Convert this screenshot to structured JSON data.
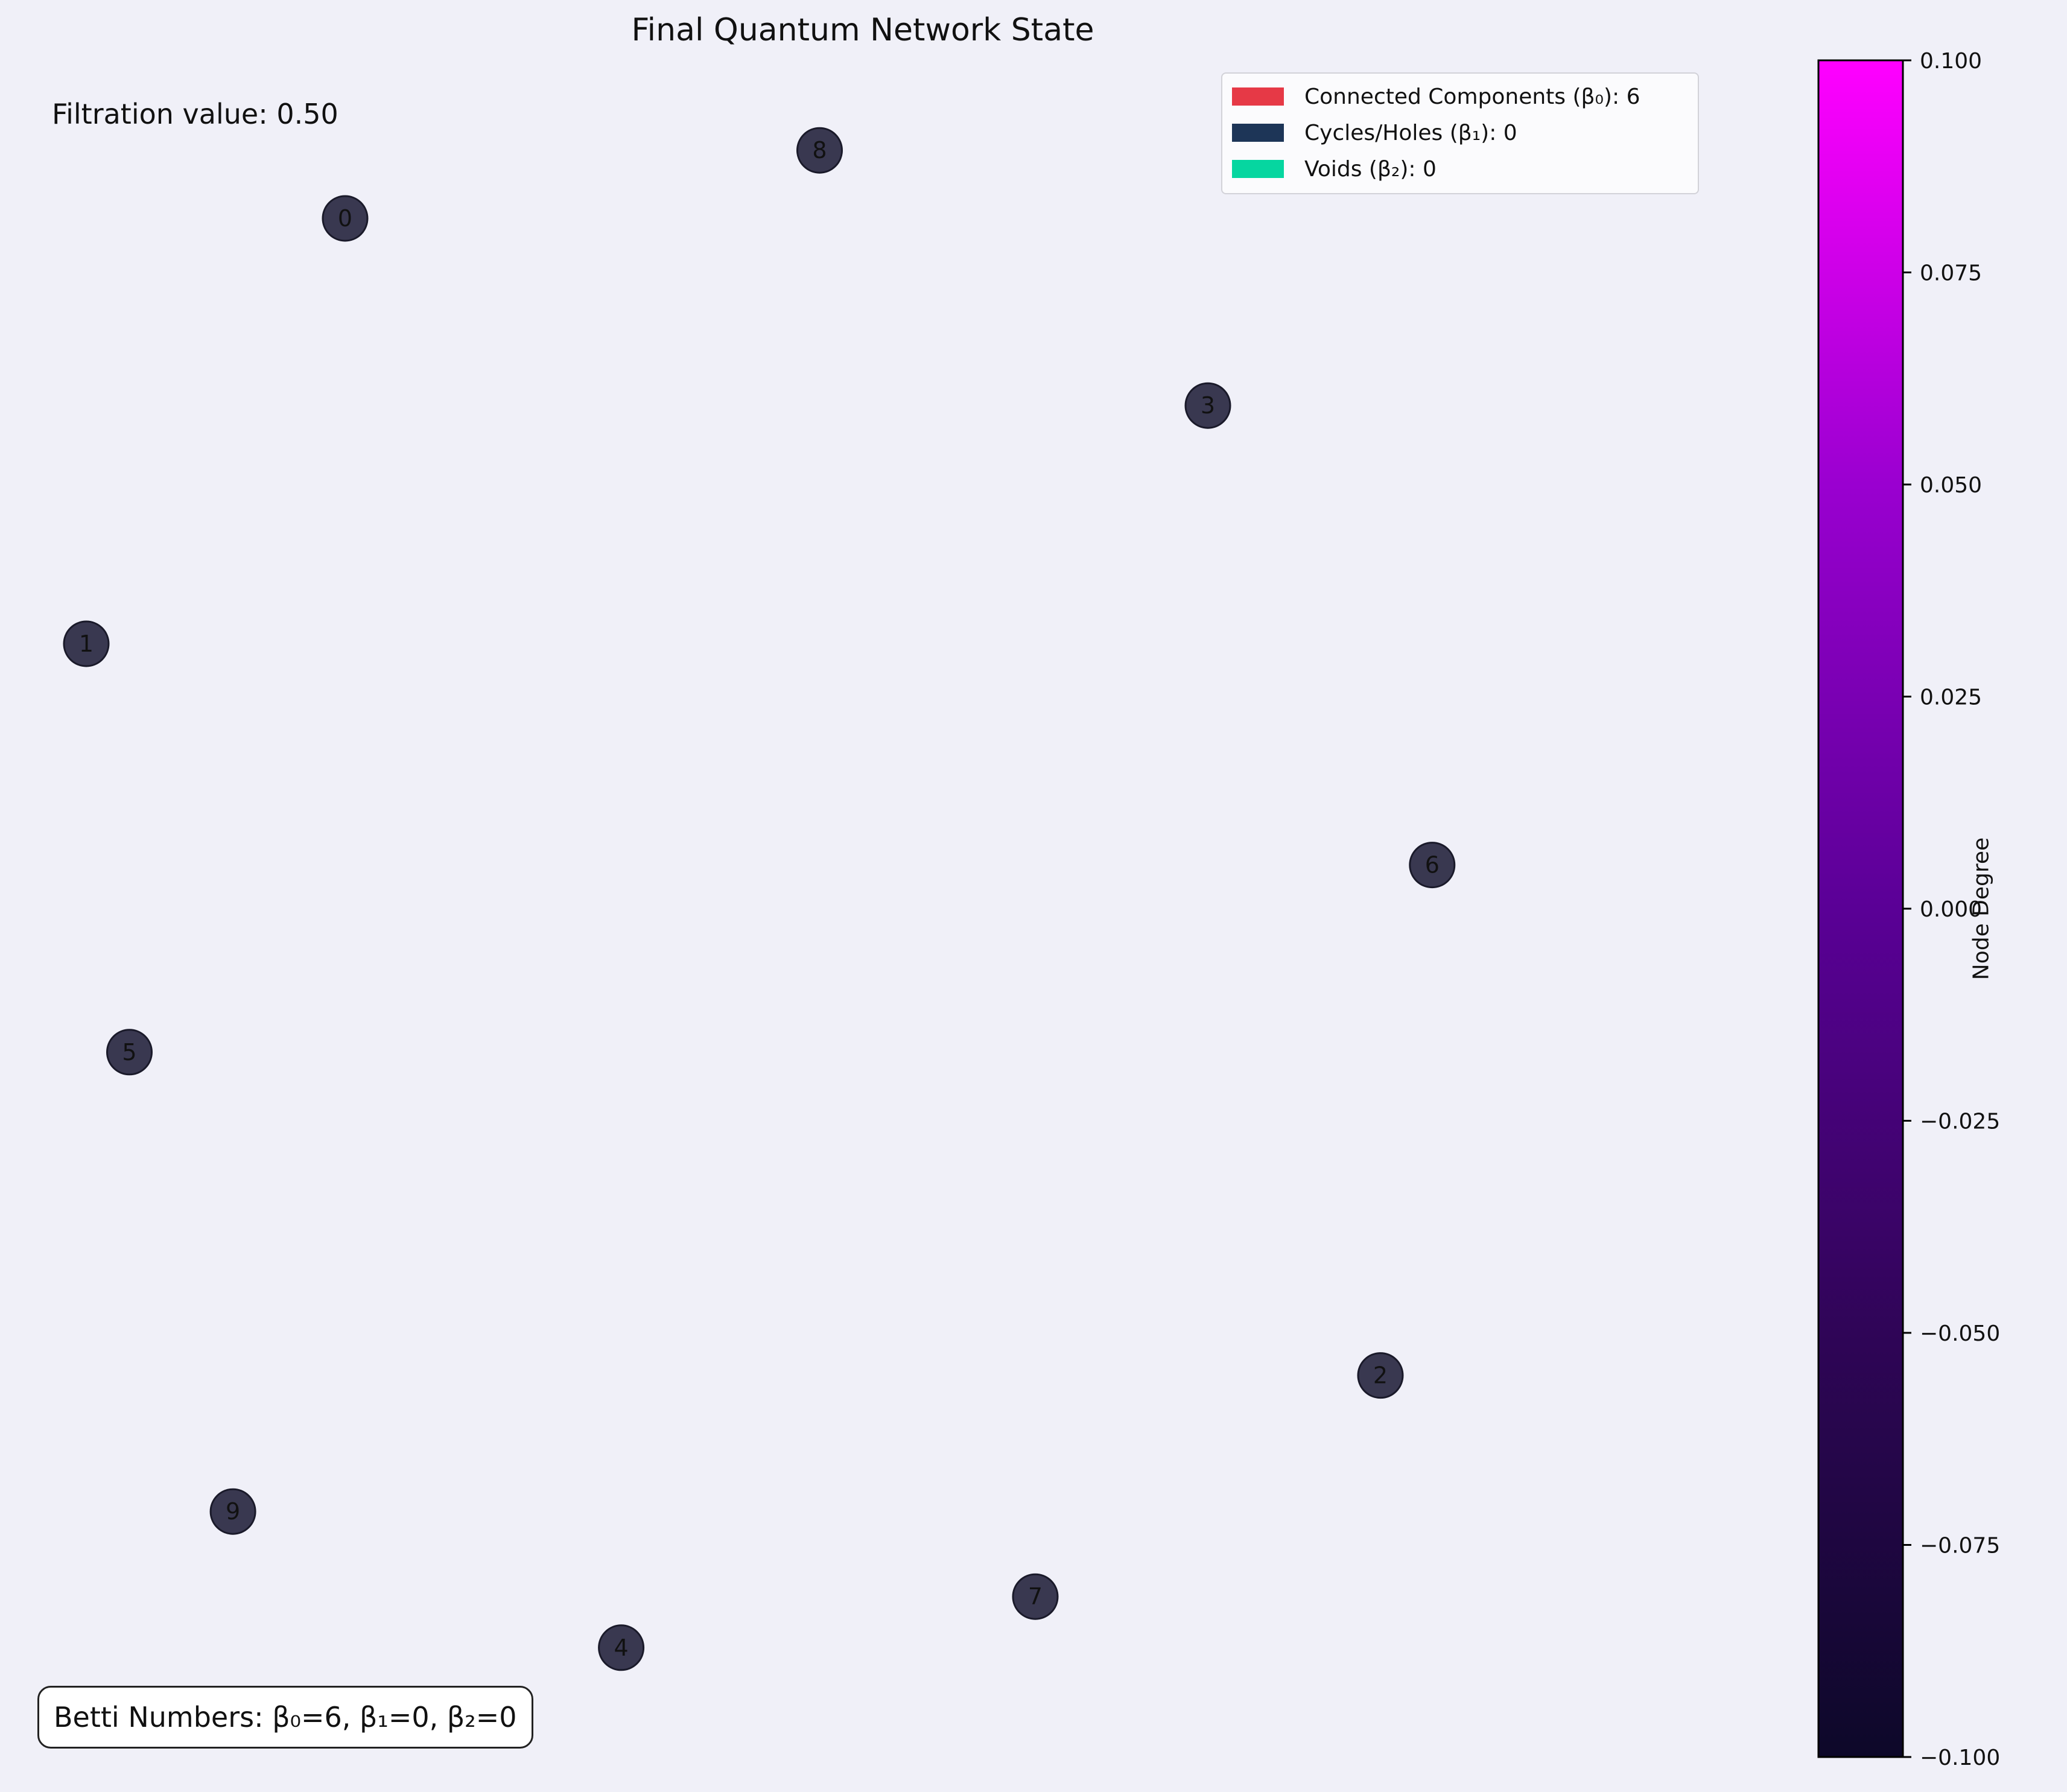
{
  "colors": {
    "background": "#f0f0f8",
    "node_fill": "#393850",
    "node_edge": "#1a1a2a"
  },
  "info": {
    "filtration": "Filtration value: 0.50",
    "betti": "Betti Numbers: β₀=6, β₁=0, β₂=0"
  },
  "legend": {
    "items": [
      {
        "label": "Connected Components (β₀): 6",
        "color": "#e63946"
      },
      {
        "label": "Cycles/Holes (β₁): 0",
        "color": "#1d3557"
      },
      {
        "label": "Voids (β₂): 0",
        "color": "#06d6a0"
      }
    ]
  },
  "chart_data": {
    "type": "scatter",
    "title": "Final Quantum Network State",
    "nodes": [
      {
        "id": "0",
        "x": 0.2,
        "y": 0.9
      },
      {
        "id": "1",
        "x": 0.05,
        "y": 0.65
      },
      {
        "id": "2",
        "x": 0.8,
        "y": 0.22
      },
      {
        "id": "3",
        "x": 0.7,
        "y": 0.79
      },
      {
        "id": "4",
        "x": 0.36,
        "y": 0.06
      },
      {
        "id": "5",
        "x": 0.075,
        "y": 0.41
      },
      {
        "id": "6",
        "x": 0.83,
        "y": 0.52
      },
      {
        "id": "7",
        "x": 0.6,
        "y": 0.09
      },
      {
        "id": "8",
        "x": 0.475,
        "y": 0.94
      },
      {
        "id": "9",
        "x": 0.135,
        "y": 0.14
      }
    ],
    "edges": [],
    "xlim": [
      0,
      1
    ],
    "ylim": [
      0,
      1
    ],
    "grid": false,
    "axes_visible": false,
    "legend_position": "top-right",
    "colorbar": {
      "label": "Node Degree",
      "ticks": [
        "0.100",
        "0.075",
        "0.050",
        "0.025",
        "0.000",
        "−0.025",
        "−0.050",
        "−0.075",
        "−0.100"
      ],
      "tick_values": [
        0.1,
        0.075,
        0.05,
        0.025,
        0.0,
        -0.025,
        -0.05,
        -0.075,
        -0.1
      ],
      "range": [
        -0.1,
        0.1
      ],
      "colormap_stops": [
        "#0d0829",
        "#2f0557",
        "#5a0096",
        "#9a00d0",
        "#ff00ff"
      ]
    }
  }
}
